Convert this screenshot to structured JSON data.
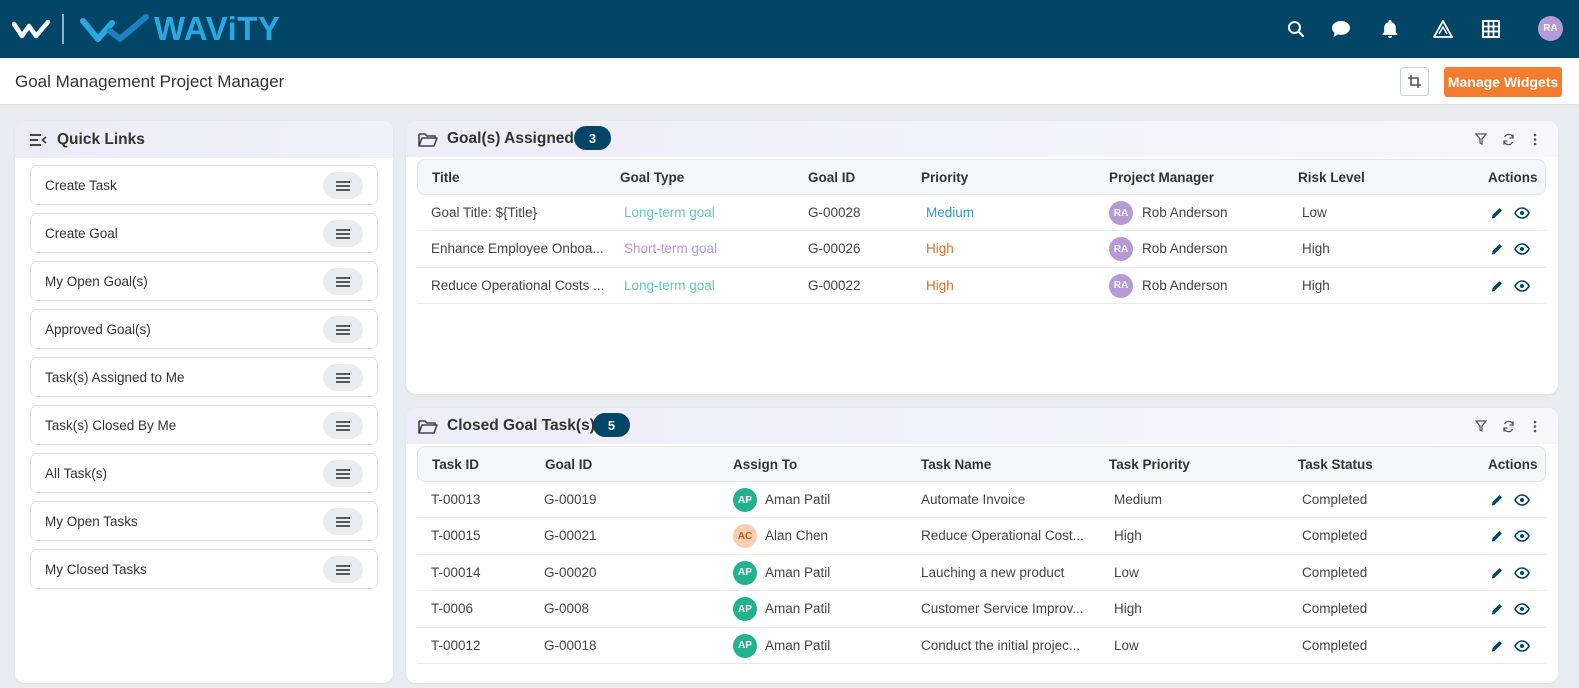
{
  "brand": {
    "name": "WAViTY",
    "colors": {
      "topbar": "#034567",
      "accent": "#29a8e0",
      "orange": "#f47c2f"
    }
  },
  "topbar": {
    "icons": [
      "search-icon",
      "chat-icon",
      "bell-icon",
      "alert-triangle-icon",
      "grid-icon"
    ],
    "user_initials": "RA"
  },
  "header": {
    "page_title": "Goal Management Project Manager",
    "manage_widgets_label": "Manage Widgets"
  },
  "quick_links": {
    "title": "Quick Links",
    "items": [
      {
        "label": "Create Task"
      },
      {
        "label": "Create Goal"
      },
      {
        "label": "My Open Goal(s)"
      },
      {
        "label": "Approved Goal(s)"
      },
      {
        "label": "Task(s) Assigned to Me"
      },
      {
        "label": "Task(s) Closed By Me"
      },
      {
        "label": "All Task(s)"
      },
      {
        "label": "My Open Tasks"
      },
      {
        "label": "My Closed Tasks"
      }
    ]
  },
  "goals_assigned": {
    "title": "Goal(s) Assigned",
    "count": "3",
    "columns": [
      "Title",
      "Goal Type",
      "Goal ID",
      "Priority",
      "Project Manager",
      "Risk Level",
      "Actions"
    ],
    "rows": [
      {
        "title": "Goal Title: ${Title}",
        "goal_type": "Long-term goal",
        "goal_id": "G-00028",
        "priority": "Medium",
        "pm_initials": "RA",
        "pm": "Rob Anderson",
        "risk": "Low"
      },
      {
        "title": "Enhance Employee Onboa...",
        "goal_type": "Short-term goal",
        "goal_id": "G-00026",
        "priority": "High",
        "pm_initials": "RA",
        "pm": "Rob Anderson",
        "risk": "High"
      },
      {
        "title": "Reduce Operational Costs ...",
        "goal_type": "Long-term goal",
        "goal_id": "G-00022",
        "priority": "High",
        "pm_initials": "RA",
        "pm": "Rob Anderson",
        "risk": "High"
      }
    ]
  },
  "closed_tasks": {
    "title": "Closed Goal Task(s)",
    "count": "5",
    "columns": [
      "Task ID",
      "Goal ID",
      "Assign To",
      "Task Name",
      "Task Priority",
      "Task Status",
      "Actions"
    ],
    "rows": [
      {
        "task_id": "T-00013",
        "goal_id": "G-00019",
        "initials": "AP",
        "assignee": "Aman Patil",
        "task_name": "Automate Invoice",
        "priority": "Medium",
        "status": "Completed"
      },
      {
        "task_id": "T-00015",
        "goal_id": "G-00021",
        "initials": "AC",
        "assignee": "Alan Chen",
        "task_name": "Reduce Operational Cost...",
        "priority": "High",
        "status": "Completed"
      },
      {
        "task_id": "T-00014",
        "goal_id": "G-00020",
        "initials": "AP",
        "assignee": "Aman Patil",
        "task_name": "Lauching a new product",
        "priority": "Low",
        "status": "Completed"
      },
      {
        "task_id": "T-0006",
        "goal_id": "G-0008",
        "initials": "AP",
        "assignee": "Aman Patil",
        "task_name": "Customer Service Improv...",
        "priority": "High",
        "status": "Completed"
      },
      {
        "task_id": "T-00012",
        "goal_id": "G-00018",
        "initials": "AP",
        "assignee": "Aman Patil",
        "task_name": "Conduct the initial projec...",
        "priority": "Low",
        "status": "Completed"
      }
    ]
  }
}
